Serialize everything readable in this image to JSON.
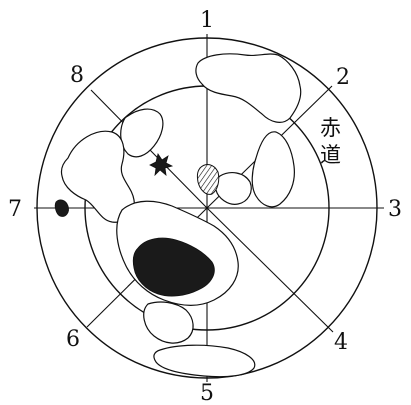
{
  "map": {
    "direction_labels": [
      "1",
      "2",
      "3",
      "4",
      "5",
      "6",
      "7",
      "8"
    ],
    "equator_label": [
      "赤",
      "道"
    ],
    "colors": {
      "ink": "#111111",
      "shaded_region": "#1a1a1a",
      "background": "#ffffff"
    }
  }
}
